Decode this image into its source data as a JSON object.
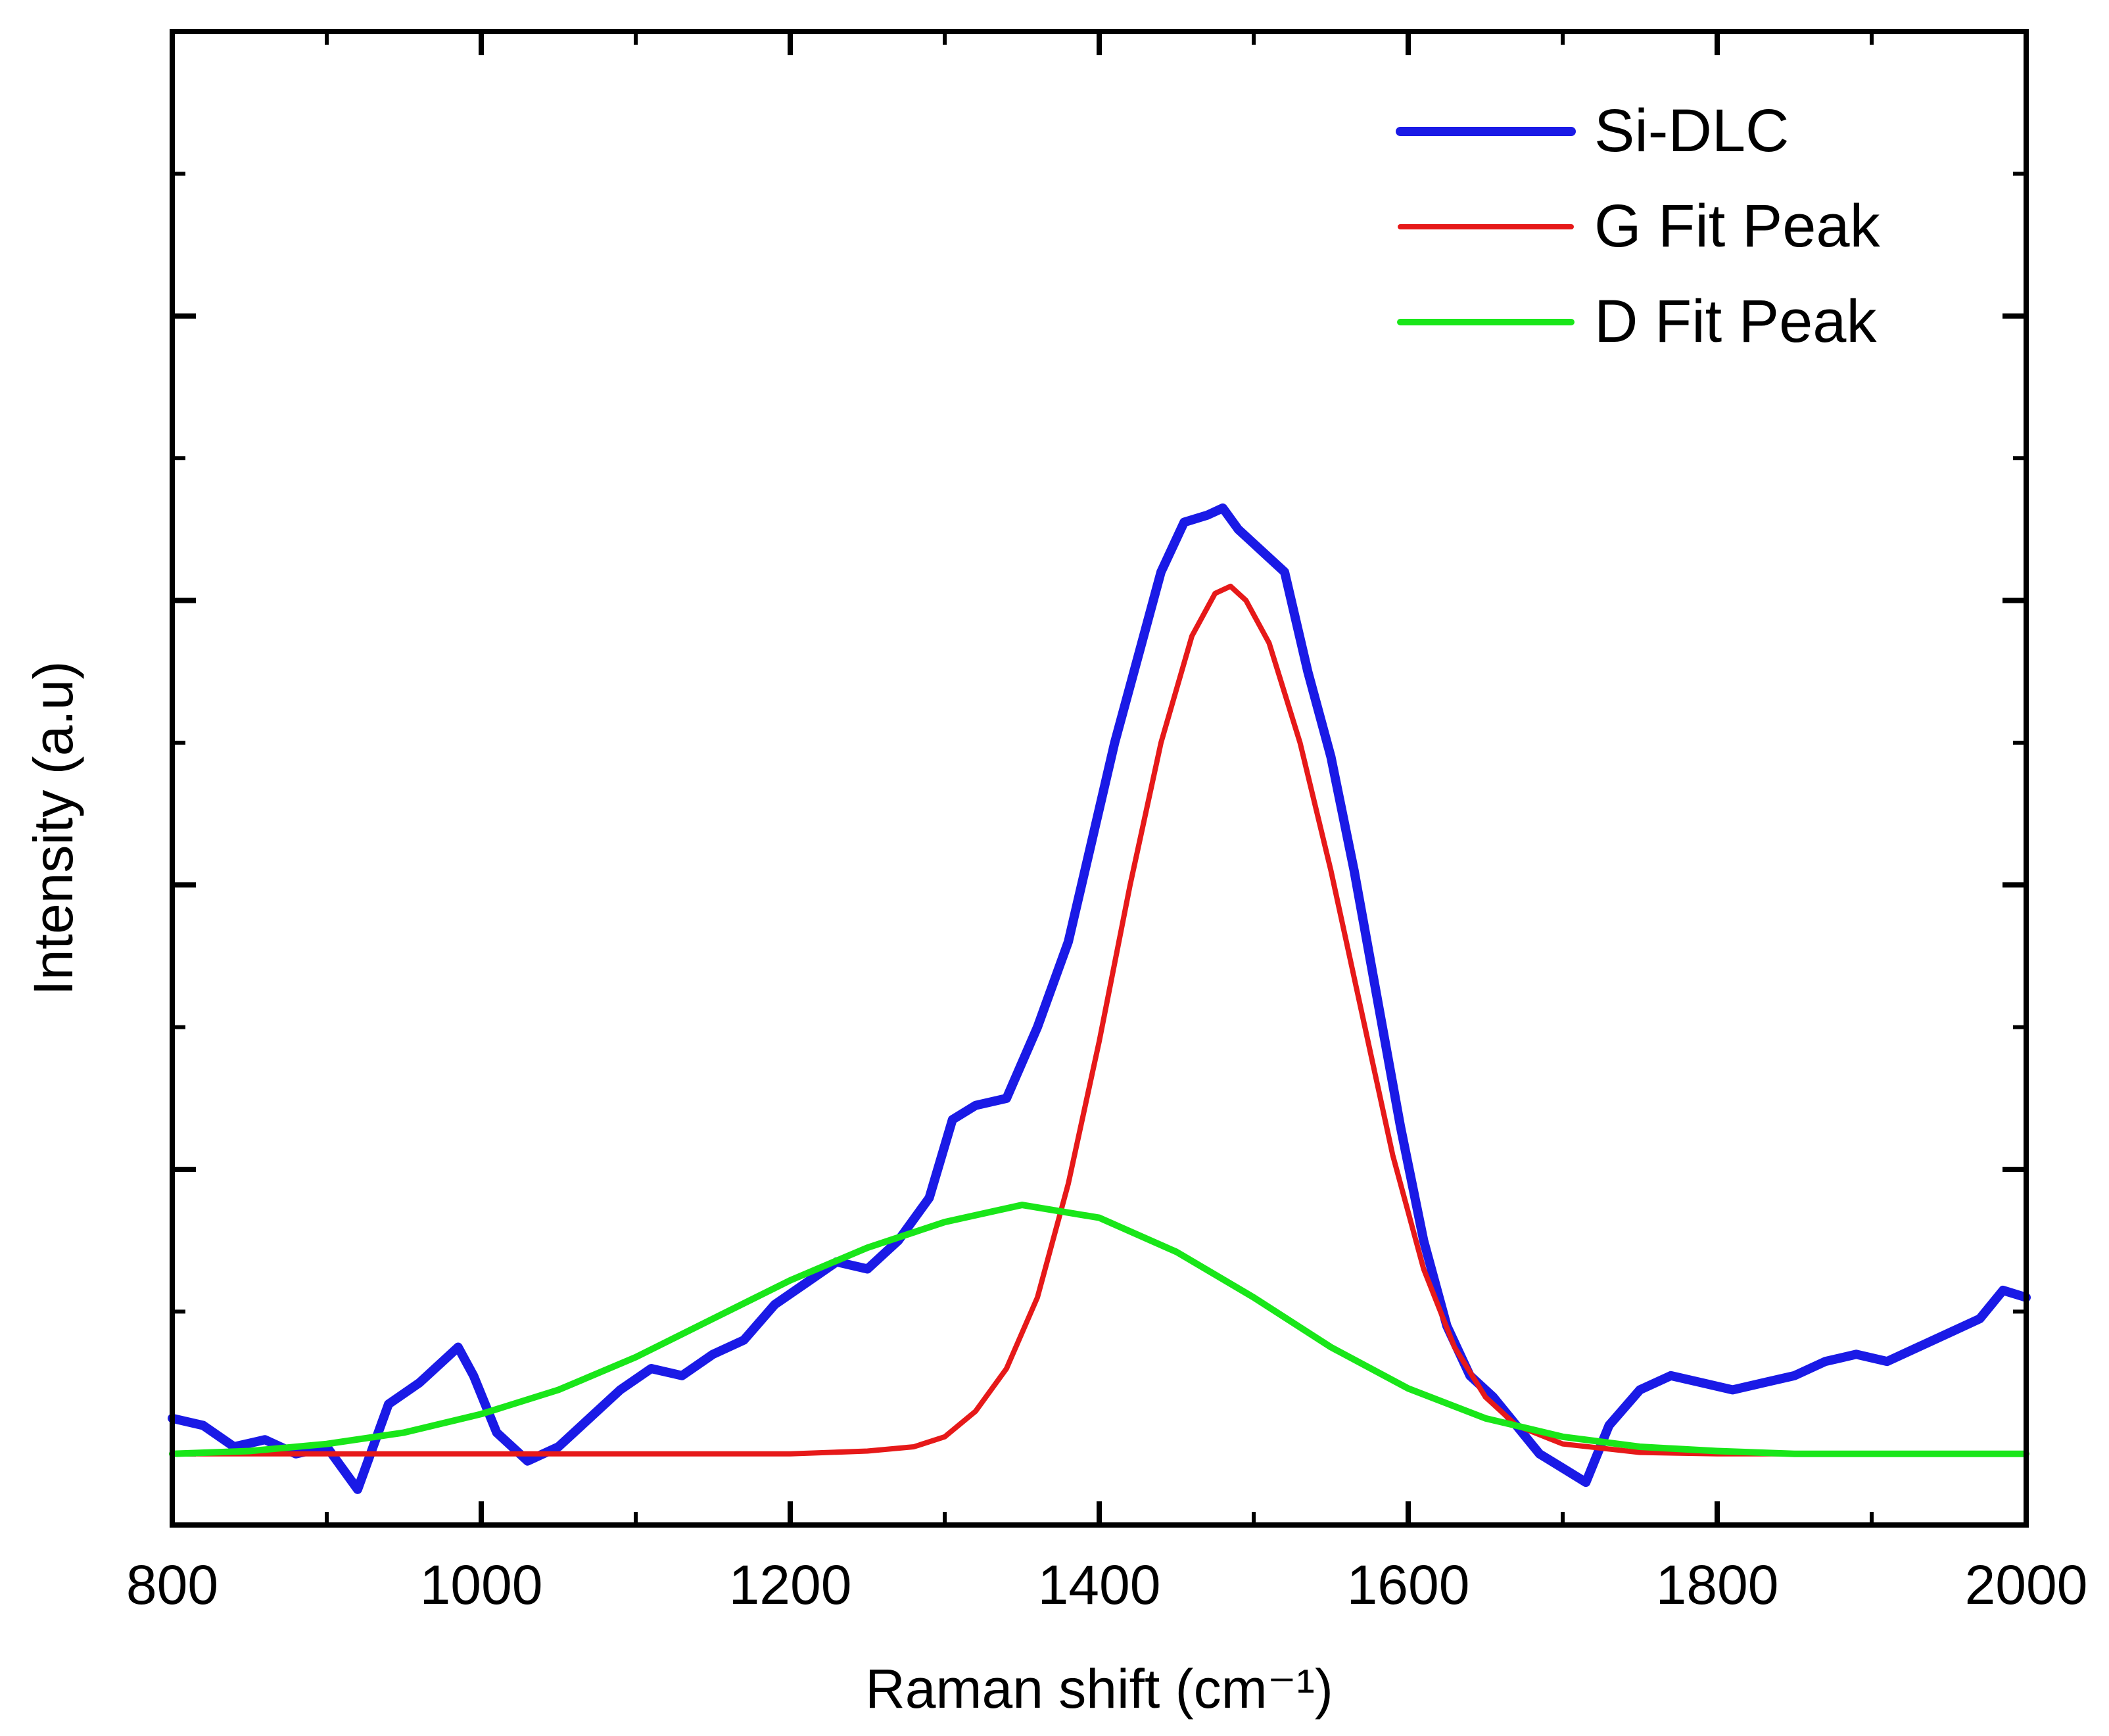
{
  "chart_data": {
    "type": "line",
    "title": "",
    "xlabel": "Raman shift (cm⁻¹)",
    "ylabel": "Intensity (a.u)",
    "xlim": [
      800,
      2000
    ],
    "ylim": [
      -0.5,
      10.0
    ],
    "x_ticks": [
      800,
      1000,
      1200,
      1400,
      1600,
      1800,
      2000
    ],
    "x_tick_labels": [
      "800",
      "1000",
      "1200",
      "1400",
      "1600",
      "1800",
      "2000"
    ],
    "y_tick_labels_shown": false,
    "grid": false,
    "legend_position": "top-right",
    "legend": [
      {
        "label": "Si-DLC",
        "series": "si_dlc"
      },
      {
        "label": "G Fit Peak",
        "series": "g_fit"
      },
      {
        "label": "D Fit Peak",
        "series": "d_fit"
      }
    ],
    "series": [
      {
        "id": "si_dlc",
        "name": "Si-DLC",
        "color": "#1a1ae6",
        "points": [
          [
            800,
            0.25
          ],
          [
            820,
            0.2
          ],
          [
            840,
            0.05
          ],
          [
            860,
            0.1
          ],
          [
            880,
            0.0
          ],
          [
            900,
            0.05
          ],
          [
            920,
            -0.25
          ],
          [
            940,
            0.35
          ],
          [
            960,
            0.5
          ],
          [
            975,
            0.65
          ],
          [
            985,
            0.75
          ],
          [
            995,
            0.55
          ],
          [
            1010,
            0.15
          ],
          [
            1030,
            -0.05
          ],
          [
            1050,
            0.05
          ],
          [
            1070,
            0.25
          ],
          [
            1090,
            0.45
          ],
          [
            1110,
            0.6
          ],
          [
            1130,
            0.55
          ],
          [
            1150,
            0.7
          ],
          [
            1170,
            0.8
          ],
          [
            1190,
            1.05
          ],
          [
            1210,
            1.2
          ],
          [
            1230,
            1.35
          ],
          [
            1250,
            1.3
          ],
          [
            1270,
            1.5
          ],
          [
            1290,
            1.8
          ],
          [
            1305,
            2.35
          ],
          [
            1320,
            2.45
          ],
          [
            1340,
            2.5
          ],
          [
            1360,
            3.0
          ],
          [
            1380,
            3.6
          ],
          [
            1395,
            4.3
          ],
          [
            1410,
            5.0
          ],
          [
            1425,
            5.6
          ],
          [
            1440,
            6.2
          ],
          [
            1455,
            6.55
          ],
          [
            1470,
            6.6
          ],
          [
            1480,
            6.65
          ],
          [
            1490,
            6.5
          ],
          [
            1505,
            6.35
          ],
          [
            1520,
            6.2
          ],
          [
            1535,
            5.5
          ],
          [
            1550,
            4.9
          ],
          [
            1565,
            4.1
          ],
          [
            1580,
            3.2
          ],
          [
            1595,
            2.3
          ],
          [
            1610,
            1.5
          ],
          [
            1625,
            0.9
          ],
          [
            1640,
            0.55
          ],
          [
            1655,
            0.4
          ],
          [
            1670,
            0.2
          ],
          [
            1685,
            0.0
          ],
          [
            1700,
            -0.1
          ],
          [
            1715,
            -0.2
          ],
          [
            1730,
            0.2
          ],
          [
            1750,
            0.45
          ],
          [
            1770,
            0.55
          ],
          [
            1790,
            0.5
          ],
          [
            1810,
            0.45
          ],
          [
            1830,
            0.5
          ],
          [
            1850,
            0.55
          ],
          [
            1870,
            0.65
          ],
          [
            1890,
            0.7
          ],
          [
            1910,
            0.65
          ],
          [
            1930,
            0.75
          ],
          [
            1950,
            0.85
          ],
          [
            1970,
            0.95
          ],
          [
            1985,
            1.15
          ],
          [
            2000,
            1.1
          ]
        ]
      },
      {
        "id": "g_fit",
        "name": "G Fit Peak",
        "color": "#e61919",
        "points": [
          [
            810,
            0.0
          ],
          [
            1100,
            0.0
          ],
          [
            1200,
            0.0
          ],
          [
            1250,
            0.02
          ],
          [
            1280,
            0.05
          ],
          [
            1300,
            0.12
          ],
          [
            1320,
            0.3
          ],
          [
            1340,
            0.6
          ],
          [
            1360,
            1.1
          ],
          [
            1380,
            1.9
          ],
          [
            1400,
            2.9
          ],
          [
            1420,
            4.0
          ],
          [
            1440,
            5.0
          ],
          [
            1460,
            5.75
          ],
          [
            1475,
            6.05
          ],
          [
            1485,
            6.1
          ],
          [
            1495,
            6.0
          ],
          [
            1510,
            5.7
          ],
          [
            1530,
            5.0
          ],
          [
            1550,
            4.1
          ],
          [
            1570,
            3.1
          ],
          [
            1590,
            2.1
          ],
          [
            1610,
            1.3
          ],
          [
            1630,
            0.75
          ],
          [
            1650,
            0.4
          ],
          [
            1670,
            0.2
          ],
          [
            1700,
            0.07
          ],
          [
            1750,
            0.01
          ],
          [
            1800,
            0.0
          ],
          [
            1890,
            0.0
          ]
        ]
      },
      {
        "id": "d_fit",
        "name": "D Fit Peak",
        "color": "#19e619",
        "points": [
          [
            800,
            0.0
          ],
          [
            850,
            0.02
          ],
          [
            900,
            0.07
          ],
          [
            950,
            0.15
          ],
          [
            1000,
            0.28
          ],
          [
            1050,
            0.45
          ],
          [
            1100,
            0.68
          ],
          [
            1150,
            0.95
          ],
          [
            1200,
            1.22
          ],
          [
            1250,
            1.45
          ],
          [
            1300,
            1.63
          ],
          [
            1350,
            1.75
          ],
          [
            1400,
            1.66
          ],
          [
            1450,
            1.42
          ],
          [
            1500,
            1.1
          ],
          [
            1550,
            0.75
          ],
          [
            1600,
            0.46
          ],
          [
            1650,
            0.25
          ],
          [
            1700,
            0.12
          ],
          [
            1750,
            0.05
          ],
          [
            1800,
            0.02
          ],
          [
            1850,
            0.0
          ],
          [
            2000,
            0.0
          ]
        ]
      }
    ]
  }
}
